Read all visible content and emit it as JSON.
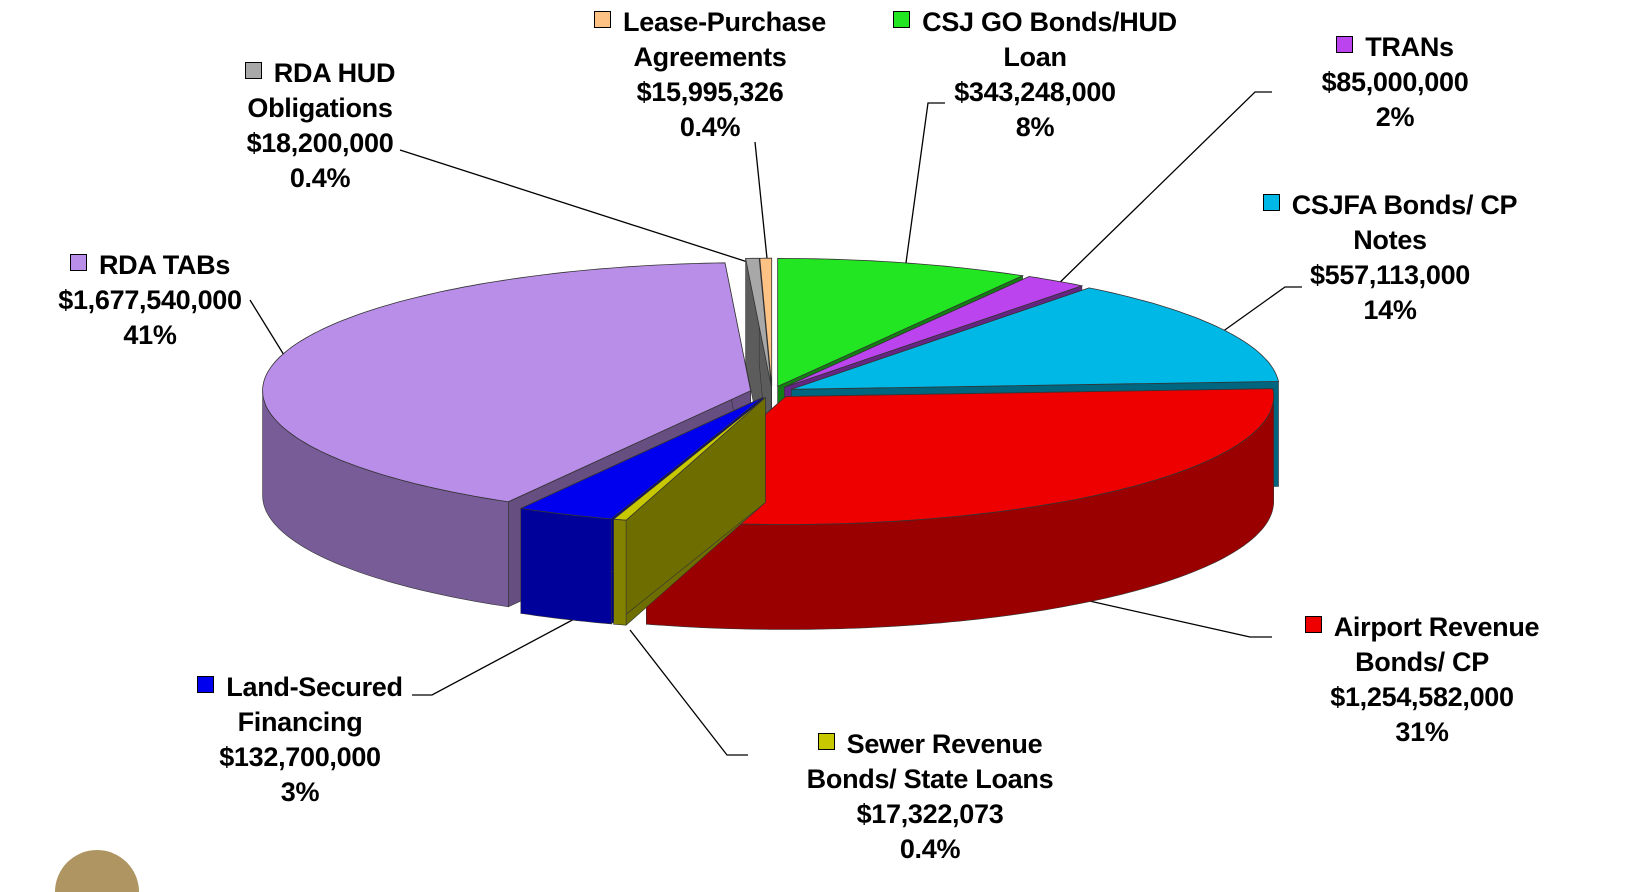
{
  "chart_data": {
    "type": "pie3d",
    "categories": [
      "CSJ GO Bonds/HUD Loan",
      "TRANs",
      "CSJFA Bonds/ CP Notes",
      "Airport Revenue Bonds/ CP",
      "Sewer Revenue Bonds/ State Loans",
      "Land-Secured Financing",
      "RDA TABs",
      "RDA HUD Obligations",
      "Lease-Purchase Agreements"
    ],
    "values": [
      343248000,
      85000000,
      557113000,
      1254582000,
      17322073,
      132700000,
      1677540000,
      18200000,
      15995326
    ],
    "value_labels": [
      "$343,248,000",
      "$85,000,000",
      "$557,113,000",
      "$1,254,582,000",
      "$17,322,073",
      "$132,700,000",
      "$1,677,540,000",
      "$18,200,000",
      "$15,995,326"
    ],
    "percents": [
      8,
      2,
      14,
      31,
      0.4,
      3,
      41,
      0.4,
      0.4
    ],
    "percent_labels": [
      "8%",
      "2%",
      "14%",
      "31%",
      "0.4%",
      "3%",
      "41%",
      "0.4%",
      "0.4%"
    ],
    "colors": [
      "#22e622",
      "#bb44ee",
      "#00b8e6",
      "#ee0000",
      "#c8c800",
      "#0000ee",
      "#b98ee8",
      "#a8a8a8",
      "#ffc285"
    ]
  }
}
